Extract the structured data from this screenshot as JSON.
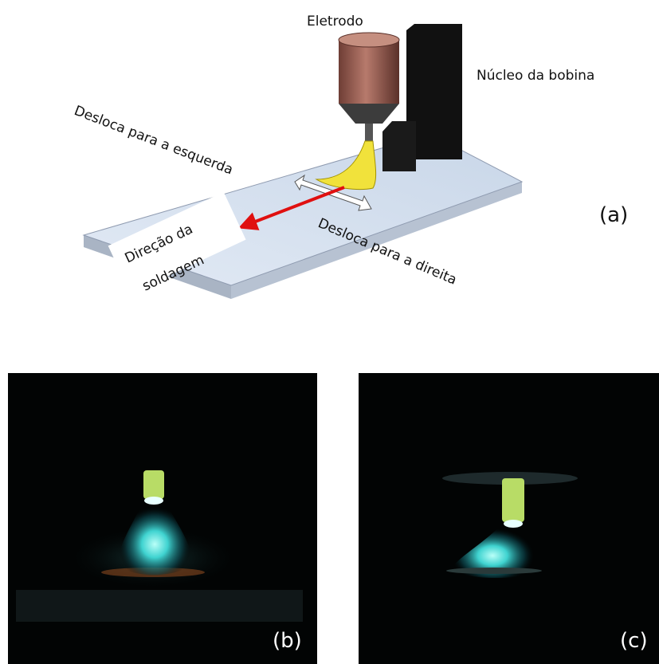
{
  "diagram": {
    "electrode_label": "Eletrodo",
    "coil_label": "Núcleo da bobina",
    "left_shift_label": "Desloca para a esquerda",
    "direction_label": [
      "Direção da",
      "soldagem"
    ],
    "right_shift_label": "Desloca para a direita",
    "panel_labels": [
      "(a)",
      "(b)",
      "(c)"
    ]
  }
}
